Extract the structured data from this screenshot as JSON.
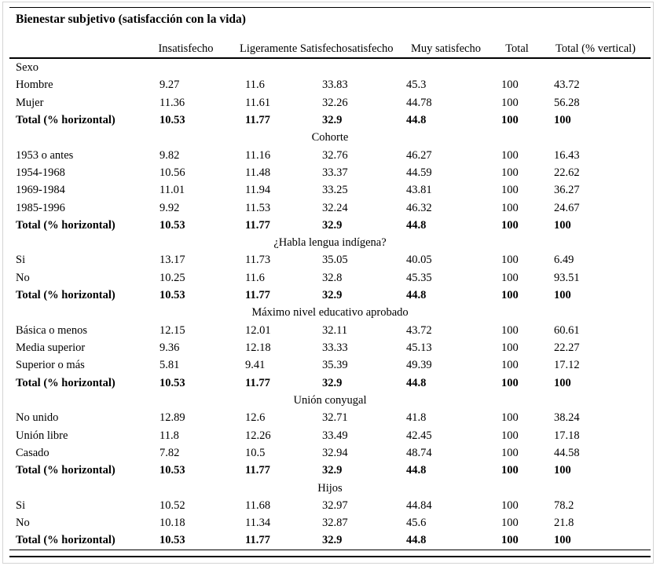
{
  "table": {
    "title": "Bienestar subjetivo (satisfacción con la vida)",
    "columns": [
      "",
      "Insatisfecho",
      "Ligeramente Satisfecho",
      "satisfecho",
      "Muy satisfecho",
      "Total",
      "Total (% vertical)"
    ],
    "sections": [
      {
        "header": "Sexo",
        "header_align": "left",
        "rows": [
          {
            "label": "Hombre",
            "values": [
              "9.27",
              "11.6",
              "33.83",
              "45.3",
              "100",
              "43.72"
            ],
            "bold": false
          },
          {
            "label": "Mujer",
            "values": [
              "11.36",
              "11.61",
              "32.26",
              "44.78",
              "100",
              "56.28"
            ],
            "bold": false
          },
          {
            "label": "Total (% horizontal)",
            "values": [
              "10.53",
              "11.77",
              "32.9",
              "44.8",
              "100",
              "100"
            ],
            "bold": true
          }
        ]
      },
      {
        "header": "Cohorte",
        "header_align": "center",
        "rows": [
          {
            "label": "1953 o antes",
            "values": [
              "9.82",
              "11.16",
              "32.76",
              "46.27",
              "100",
              "16.43"
            ],
            "bold": false
          },
          {
            "label": "1954-1968",
            "values": [
              "10.56",
              "11.48",
              "33.37",
              "44.59",
              "100",
              "22.62"
            ],
            "bold": false
          },
          {
            "label": "1969-1984",
            "values": [
              "11.01",
              "11.94",
              "33.25",
              "43.81",
              "100",
              "36.27"
            ],
            "bold": false
          },
          {
            "label": "1985-1996",
            "values": [
              "9.92",
              "11.53",
              "32.24",
              "46.32",
              "100",
              "24.67"
            ],
            "bold": false
          },
          {
            "label": "Total (% horizontal)",
            "values": [
              "10.53",
              "11.77",
              "32.9",
              "44.8",
              "100",
              "100"
            ],
            "bold": true
          }
        ]
      },
      {
        "header": "¿Habla lengua indígena?",
        "header_align": "center",
        "rows": [
          {
            "label": "Si",
            "values": [
              "13.17",
              "11.73",
              "35.05",
              "40.05",
              "100",
              "6.49"
            ],
            "bold": false
          },
          {
            "label": "No",
            "values": [
              "10.25",
              "11.6",
              "32.8",
              "45.35",
              "100",
              "93.51"
            ],
            "bold": false
          },
          {
            "label": "Total (% horizontal)",
            "values": [
              "10.53",
              "11.77",
              "32.9",
              "44.8",
              "100",
              "100"
            ],
            "bold": true
          }
        ]
      },
      {
        "header": "Máximo nivel educativo aprobado",
        "header_align": "center",
        "rows": [
          {
            "label": "Básica o menos",
            "values": [
              "12.15",
              "12.01",
              "32.11",
              "43.72",
              "100",
              "60.61"
            ],
            "bold": false
          },
          {
            "label": "Media superior",
            "values": [
              "9.36",
              "12.18",
              "33.33",
              "45.13",
              "100",
              "22.27"
            ],
            "bold": false
          },
          {
            "label": "Superior o más",
            "values": [
              "5.81",
              "9.41",
              "35.39",
              "49.39",
              "100",
              "17.12"
            ],
            "bold": false
          },
          {
            "label": "Total (% horizontal)",
            "values": [
              "10.53",
              "11.77",
              "32.9",
              "44.8",
              "100",
              "100"
            ],
            "bold": true
          }
        ]
      },
      {
        "header": "Unión conyugal",
        "header_align": "center",
        "rows": [
          {
            "label": "No unido",
            "values": [
              "12.89",
              "12.6",
              "32.71",
              "41.8",
              "100",
              "38.24"
            ],
            "bold": false
          },
          {
            "label": "Unión libre",
            "values": [
              "11.8",
              "12.26",
              "33.49",
              "42.45",
              "100",
              "17.18"
            ],
            "bold": false
          },
          {
            "label": "Casado",
            "values": [
              "7.82",
              "10.5",
              "32.94",
              "48.74",
              "100",
              "44.58"
            ],
            "bold": false
          },
          {
            "label": "Total (% horizontal)",
            "values": [
              "10.53",
              "11.77",
              "32.9",
              "44.8",
              "100",
              "100"
            ],
            "bold": true
          }
        ]
      },
      {
        "header": "Hijos",
        "header_align": "center",
        "rows": [
          {
            "label": "Si",
            "values": [
              "10.52",
              "11.68",
              "32.97",
              "44.84",
              "100",
              "78.2"
            ],
            "bold": false
          },
          {
            "label": "No",
            "values": [
              "10.18",
              "11.34",
              "32.87",
              "45.6",
              "100",
              "21.8"
            ],
            "bold": false
          },
          {
            "label": "Total (% horizontal)",
            "values": [
              "10.53",
              "11.77",
              "32.9",
              "44.8",
              "100",
              "100"
            ],
            "bold": true
          }
        ]
      }
    ],
    "style": {
      "rule_color": "#000000",
      "frame_border_color": "#d4d4d4",
      "text_color": "#000000",
      "background_color": "#ffffff"
    }
  }
}
